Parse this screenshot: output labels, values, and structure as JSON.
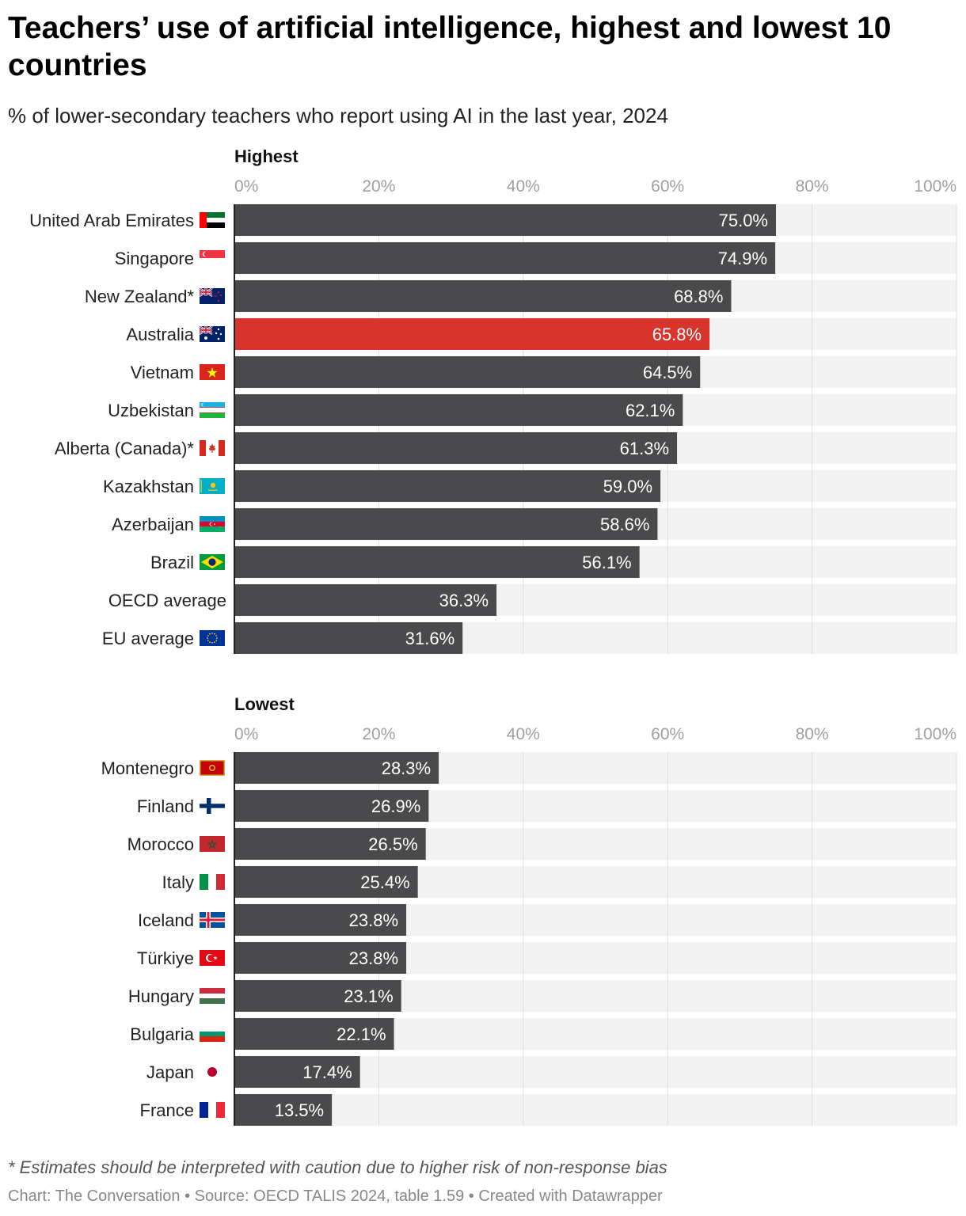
{
  "title": "Teachers’ use of artificial intelligence, highest and lowest 10 countries",
  "subtitle": "% of lower-secondary teachers who report using AI in the last year, 2024",
  "footnote": "* Estimates should be interpreted with caution due to higher risk of non-response bias",
  "credit": {
    "chart": "Chart: The Conversation",
    "separator": " • ",
    "source": "Source: OECD TALIS 2024, table 1.59",
    "created": "Created with Datawrapper"
  },
  "colors": {
    "bar": "#4a4a4c",
    "highlight": "#d9342b",
    "track": "#f2f2f2",
    "grid": "#dddddd",
    "axis": "#222222"
  },
  "chart_data": [
    {
      "type": "bar",
      "orientation": "horizontal",
      "panel_title": "Highest",
      "xlim": [
        0,
        100
      ],
      "ticks": [
        "0%",
        "20%",
        "40%",
        "60%",
        "80%",
        "100%"
      ],
      "value_suffix": "%",
      "grid": true,
      "categories": [
        "United Arab Emirates",
        "Singapore",
        "New Zealand*",
        "Australia",
        "Vietnam",
        "Uzbekistan",
        "Alberta (Canada)*",
        "Kazakhstan",
        "Azerbaijan",
        "Brazil",
        "OECD average",
        "EU average"
      ],
      "values": [
        75.0,
        74.9,
        68.8,
        65.8,
        64.5,
        62.1,
        61.3,
        59.0,
        58.6,
        56.1,
        36.3,
        31.6
      ],
      "value_labels": [
        "75.0%",
        "74.9%",
        "68.8%",
        "65.8%",
        "64.5%",
        "62.1%",
        "61.3%",
        "59.0%",
        "58.6%",
        "56.1%",
        "36.3%",
        "31.6%"
      ],
      "flags": [
        "uae-flag-icon",
        "singapore-flag-icon",
        "new-zealand-flag-icon",
        "australia-flag-icon",
        "vietnam-flag-icon",
        "uzbekistan-flag-icon",
        "canada-flag-icon",
        "kazakhstan-flag-icon",
        "azerbaijan-flag-icon",
        "brazil-flag-icon",
        "",
        "eu-flag-icon"
      ],
      "highlight": [
        "Australia"
      ]
    },
    {
      "type": "bar",
      "orientation": "horizontal",
      "panel_title": "Lowest",
      "xlim": [
        0,
        100
      ],
      "ticks": [
        "0%",
        "20%",
        "40%",
        "60%",
        "80%",
        "100%"
      ],
      "value_suffix": "%",
      "grid": true,
      "categories": [
        "Montenegro",
        "Finland",
        "Morocco",
        "Italy",
        "Iceland",
        "Türkiye",
        "Hungary",
        "Bulgaria",
        "Japan",
        "France"
      ],
      "values": [
        28.3,
        26.9,
        26.5,
        25.4,
        23.8,
        23.8,
        23.1,
        22.1,
        17.4,
        13.5
      ],
      "value_labels": [
        "28.3%",
        "26.9%",
        "26.5%",
        "25.4%",
        "23.8%",
        "23.8%",
        "23.1%",
        "22.1%",
        "17.4%",
        "13.5%"
      ],
      "flags": [
        "montenegro-flag-icon",
        "finland-flag-icon",
        "morocco-flag-icon",
        "italy-flag-icon",
        "iceland-flag-icon",
        "turkiye-flag-icon",
        "hungary-flag-icon",
        "bulgaria-flag-icon",
        "japan-flag-icon",
        "france-flag-icon"
      ],
      "highlight": []
    }
  ]
}
